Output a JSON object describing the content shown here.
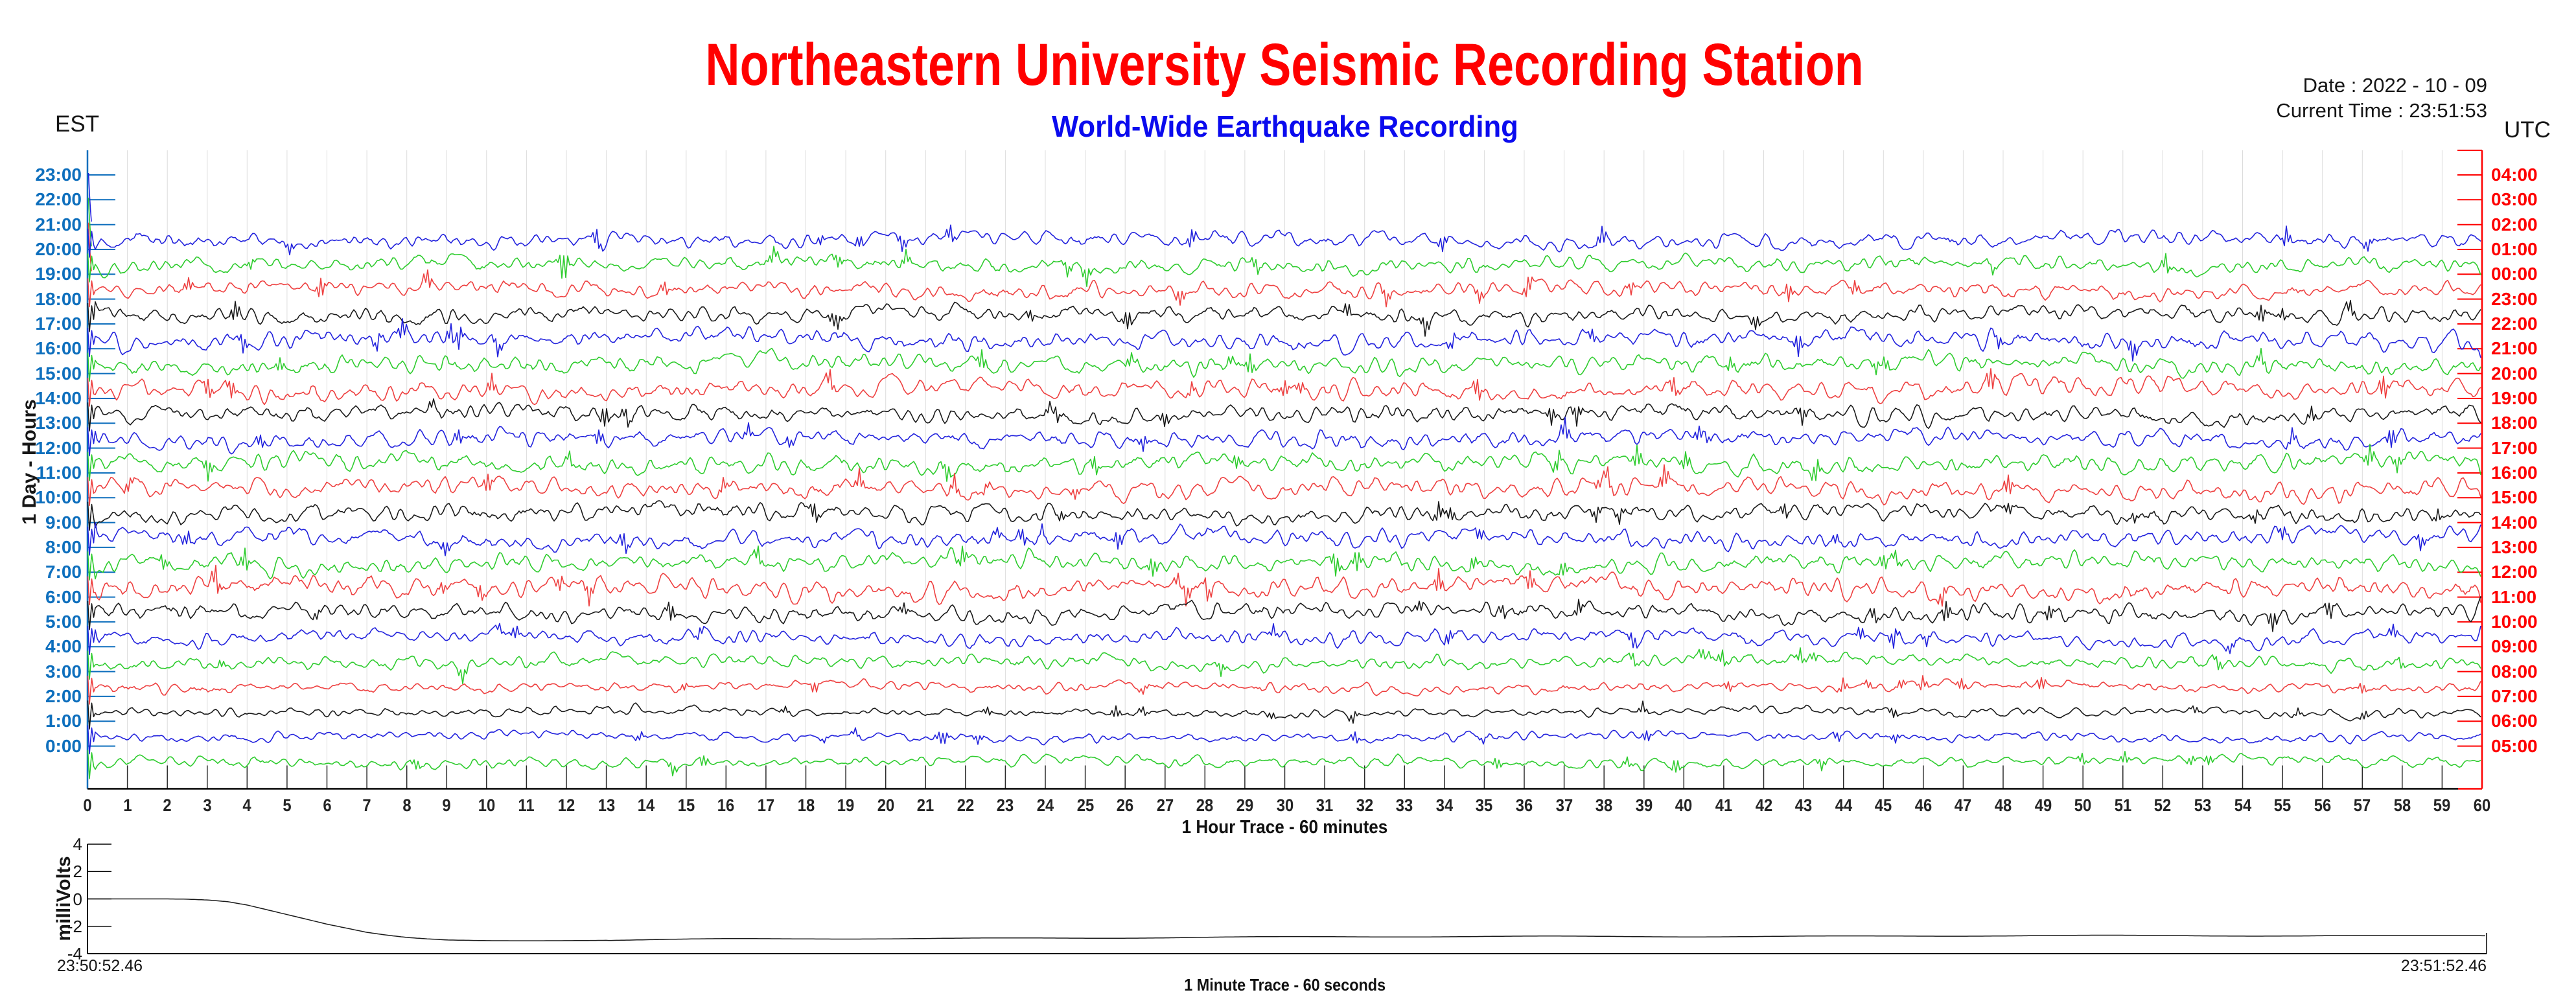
{
  "header": {
    "title": "Northeastern University Seismic Recording Station",
    "title_color": "#ff0000",
    "subtitle": "World-Wide Earthquake Recording",
    "subtitle_color": "#0b0bee",
    "date_line": "Date : 2022 - 10 - 09",
    "time_line": "Current Time : 23:51:53"
  },
  "main_chart": {
    "left_tz_label": "EST",
    "right_tz_label": "UTC",
    "y_axis_title": "1 Day - Hours",
    "x_axis_title": "1 Hour Trace - 60 minutes",
    "minute_labels": [
      "0",
      "1",
      "2",
      "3",
      "4",
      "5",
      "6",
      "7",
      "8",
      "9",
      "10",
      "11",
      "12",
      "13",
      "14",
      "15",
      "16",
      "17",
      "18",
      "19",
      "20",
      "21",
      "22",
      "23",
      "24",
      "25",
      "26",
      "27",
      "28",
      "29",
      "30",
      "31",
      "32",
      "33",
      "34",
      "35",
      "36",
      "37",
      "38",
      "39",
      "40",
      "41",
      "42",
      "43",
      "44",
      "45",
      "46",
      "47",
      "48",
      "49",
      "50",
      "51",
      "52",
      "53",
      "54",
      "55",
      "56",
      "57",
      "58",
      "59",
      "60"
    ],
    "colors": {
      "left_axis_blue": "#0e6fbd",
      "right_axis_red": "#fe0000",
      "grid_gray": "#dcdcdc",
      "minute_tick": "#2b2b2b",
      "trace_blue": "#2222dd",
      "trace_green": "#2ecc2e",
      "trace_red": "#ee4040",
      "trace_black": "#1a1a1a"
    }
  },
  "mini_chart": {
    "y_label": "milliVolts",
    "y_tick_labels": [
      "4",
      "2",
      "0",
      "-2",
      "-4"
    ],
    "y_range": [
      -4,
      4
    ],
    "start_timestamp": "23:50:52.46",
    "end_timestamp": "23:51:52.46",
    "x_axis_title": "1 Minute Trace  - 60 seconds"
  },
  "chart_data": {
    "type": "line",
    "title": "Northeastern University Seismic Recording Station",
    "subtitle": "World-Wide Earthquake Recording",
    "date": "2022 - 10 - 09",
    "current_time": "23:51:53",
    "x_axis": {
      "label": "1 Hour Trace - 60 minutes",
      "range_minutes": [
        0,
        60
      ],
      "tick_interval": 1,
      "grid": "vertical-light-gray"
    },
    "y_axis_left": {
      "timezone": "EST",
      "title": "1 Day - Hours"
    },
    "y_axis_right": {
      "timezone": "UTC"
    },
    "traces": [
      {
        "est": "23:00",
        "utc": "04:00",
        "color": "blue",
        "recorded": false,
        "amp": 0
      },
      {
        "est": "22:00",
        "utc": "03:00",
        "color": "green",
        "recorded": false,
        "amp": 0
      },
      {
        "est": "21:00",
        "utc": "02:00",
        "color": "red",
        "recorded": false,
        "amp": 0
      },
      {
        "est": "20:00",
        "utc": "01:00",
        "color": "blue",
        "recorded": true,
        "amp": 10
      },
      {
        "est": "19:00",
        "utc": "00:00",
        "color": "green",
        "recorded": true,
        "amp": 10
      },
      {
        "est": "18:00",
        "utc": "23:00",
        "color": "red",
        "recorded": true,
        "amp": 10
      },
      {
        "est": "17:00",
        "utc": "22:00",
        "color": "black",
        "recorded": true,
        "amp": 10
      },
      {
        "est": "16:00",
        "utc": "21:00",
        "color": "blue",
        "recorded": true,
        "amp": 12
      },
      {
        "est": "15:00",
        "utc": "20:00",
        "color": "green",
        "recorded": true,
        "amp": 12
      },
      {
        "est": "14:00",
        "utc": "19:00",
        "color": "red",
        "recorded": true,
        "amp": 12
      },
      {
        "est": "13:00",
        "utc": "18:00",
        "color": "black",
        "recorded": true,
        "amp": 11
      },
      {
        "est": "12:00",
        "utc": "17:00",
        "color": "blue",
        "recorded": true,
        "amp": 11
      },
      {
        "est": "11:00",
        "utc": "16:00",
        "color": "green",
        "recorded": true,
        "amp": 12
      },
      {
        "est": "10:00",
        "utc": "15:00",
        "color": "red",
        "recorded": true,
        "amp": 12
      },
      {
        "est": "9:00",
        "utc": "14:00",
        "color": "black",
        "recorded": true,
        "amp": 11
      },
      {
        "est": "8:00",
        "utc": "13:00",
        "color": "blue",
        "recorded": true,
        "amp": 11
      },
      {
        "est": "7:00",
        "utc": "12:00",
        "color": "green",
        "recorded": true,
        "amp": 12
      },
      {
        "est": "6:00",
        "utc": "11:00",
        "color": "red",
        "recorded": true,
        "amp": 13
      },
      {
        "est": "5:00",
        "utc": "10:00",
        "color": "black",
        "recorded": true,
        "amp": 11
      },
      {
        "est": "4:00",
        "utc": "09:00",
        "color": "blue",
        "recorded": true,
        "amp": 10
      },
      {
        "est": "3:00",
        "utc": "08:00",
        "color": "green",
        "recorded": true,
        "amp": 9
      },
      {
        "est": "2:00",
        "utc": "07:00",
        "color": "red",
        "recorded": true,
        "amp": 7
      },
      {
        "est": "1:00",
        "utc": "06:00",
        "color": "black",
        "recorded": true,
        "amp": 6
      },
      {
        "est": "0:00",
        "utc": "05:00",
        "color": "blue",
        "recorded": true,
        "amp": 6
      }
    ],
    "previous_day_partial_trace": {
      "est": "23:00 (previous day)",
      "color": "green",
      "amp": 7
    },
    "trace_character": "continuous random seismic background noise, no large events",
    "minute_trace": {
      "label": "1 Minute Trace  - 60 seconds",
      "ylabel": "milliVolts",
      "ylim": [
        -4,
        4
      ],
      "start_time": "23:50:52.46",
      "end_time": "23:51:52.46",
      "points_sec_mv": [
        [
          0,
          0
        ],
        [
          1,
          0
        ],
        [
          2,
          0
        ],
        [
          2.5,
          -0.02
        ],
        [
          3,
          -0.08
        ],
        [
          3.5,
          -0.2
        ],
        [
          4,
          -0.45
        ],
        [
          4.5,
          -0.8
        ],
        [
          5,
          -1.15
        ],
        [
          5.5,
          -1.5
        ],
        [
          6,
          -1.85
        ],
        [
          6.5,
          -2.15
        ],
        [
          7,
          -2.45
        ],
        [
          7.5,
          -2.65
        ],
        [
          8,
          -2.82
        ],
        [
          8.5,
          -2.92
        ],
        [
          9,
          -3.0
        ],
        [
          10,
          -3.05
        ],
        [
          11,
          -3.06
        ],
        [
          12,
          -3.05
        ],
        [
          14,
          -3.0
        ],
        [
          16,
          -2.95
        ],
        [
          20,
          -2.9
        ],
        [
          24,
          -2.85
        ],
        [
          28,
          -2.8
        ],
        [
          32,
          -2.78
        ],
        [
          36,
          -2.75
        ],
        [
          40,
          -2.73
        ],
        [
          44,
          -2.72
        ],
        [
          48,
          -2.7
        ],
        [
          52,
          -2.7
        ],
        [
          56,
          -2.68
        ],
        [
          60,
          -2.66
        ]
      ]
    }
  }
}
